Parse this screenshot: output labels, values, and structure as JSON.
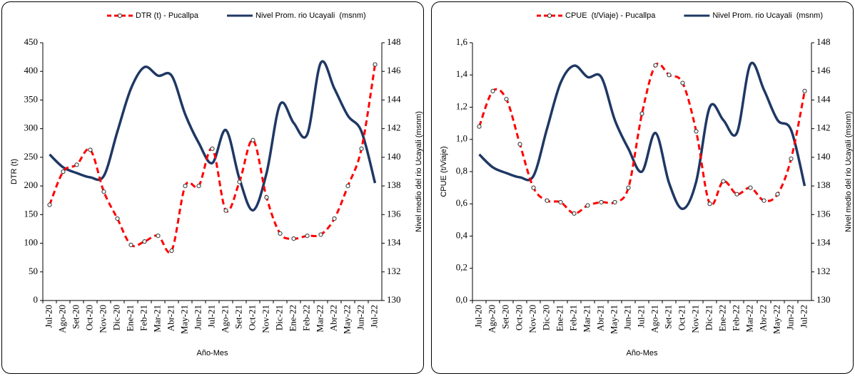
{
  "chart_data": [
    {
      "type": "line",
      "xlabel": "Año-Mes",
      "ylabel": "DTR (t)",
      "y2label": "Nivel medio del rio Ucayali (msnm)",
      "categories": [
        "Jul-20",
        "Ago-20",
        "Set-20",
        "Oct-20",
        "Nov-20",
        "Dic-20",
        "Ene-21",
        "Feb-21",
        "Mar-21",
        "Abr-21",
        "May-21",
        "Jun-21",
        "Jul-21",
        "Ago-21",
        "Set-21",
        "Oct-21",
        "Nov-21",
        "Dic-21",
        "Ene-22",
        "Feb-22",
        "Mar-22",
        "Abr-22",
        "May-22",
        "Jun-22",
        "Jul-22"
      ],
      "series": [
        {
          "name": "DTR (t) - Pucallpa",
          "color": "#ff0000",
          "values": [
            167,
            225,
            237,
            263,
            190,
            143,
            97,
            103,
            113,
            87,
            200,
            200,
            265,
            157,
            207,
            280,
            180,
            117,
            108,
            113,
            115,
            143,
            200,
            265,
            412
          ]
        },
        {
          "name": "Nivel Prom. rio Ucayali  (msnm)",
          "color": "#1f3864",
          "axis": "y2",
          "values": [
            140.2,
            139.3,
            138.9,
            138.6,
            138.7,
            141.8,
            144.8,
            146.3,
            145.7,
            145.7,
            143.0,
            141.0,
            139.6,
            141.9,
            138.5,
            136.3,
            138.9,
            143.7,
            142.4,
            141.6,
            146.6,
            144.8,
            142.9,
            141.8,
            138.2
          ]
        }
      ],
      "ylim": [
        0,
        450
      ],
      "yticks": [
        0,
        50,
        100,
        150,
        200,
        250,
        300,
        350,
        400,
        450
      ],
      "y2lim": [
        130,
        148
      ],
      "y2ticks": [
        130,
        132,
        134,
        136,
        138,
        140,
        142,
        144,
        146,
        148
      ],
      "legend": "top"
    },
    {
      "type": "line",
      "xlabel": "Año-Mes",
      "ylabel": "CPUE (t/Viaje)",
      "y2label": "Nivel medio del rio Ucayali (msnm)",
      "categories": [
        "Jul-20",
        "Ago-20",
        "Set-20",
        "Oct-20",
        "Nov-20",
        "Dic-20",
        "Ene-21",
        "Feb-21",
        "Mar-21",
        "Abr-21",
        "May-21",
        "Jun-21",
        "Jul-21",
        "Ago-21",
        "Set-21",
        "Oct-21",
        "Nov-21",
        "Dic-21",
        "Ene-22",
        "Feb-22",
        "Mar-22",
        "Abr-22",
        "May-22",
        "Jun-22",
        "Jul-22"
      ],
      "series": [
        {
          "name": "CPUE  (t/Viaje) - Pucallpa",
          "color": "#ff0000",
          "values": [
            1.08,
            1.3,
            1.25,
            0.97,
            0.7,
            0.62,
            0.61,
            0.54,
            0.59,
            0.61,
            0.61,
            0.7,
            1.16,
            1.46,
            1.4,
            1.35,
            1.05,
            0.6,
            0.74,
            0.66,
            0.7,
            0.62,
            0.66,
            0.88,
            1.3
          ]
        },
        {
          "name": "Nivel Prom. rio Ucayali  (msnm)",
          "color": "#1f3864",
          "axis": "y2",
          "values": [
            140.2,
            139.3,
            138.9,
            138.6,
            138.7,
            142.0,
            145.2,
            146.4,
            145.6,
            145.6,
            142.6,
            140.6,
            139.0,
            141.7,
            138.2,
            136.4,
            138.3,
            143.5,
            142.6,
            141.7,
            146.5,
            144.7,
            142.6,
            141.9,
            138.0
          ]
        }
      ],
      "ylim": [
        0,
        1.6
      ],
      "yticks": [
        {
          "value": 0,
          "label": "0,0"
        },
        {
          "value": 0.2,
          "label": "0,2"
        },
        {
          "value": 0.4,
          "label": "0,4"
        },
        {
          "value": 0.6,
          "label": "0,6"
        },
        {
          "value": 0.8,
          "label": "0,8"
        },
        {
          "value": 1,
          "label": "1,0"
        },
        {
          "value": 1.2,
          "label": "1,2"
        },
        {
          "value": 1.4,
          "label": "1,4"
        },
        {
          "value": 1.6,
          "label": "1,6"
        }
      ],
      "y2lim": [
        130,
        148
      ],
      "y2ticks": [
        130,
        132,
        134,
        136,
        138,
        140,
        142,
        144,
        146,
        148
      ],
      "legend": "top"
    }
  ]
}
